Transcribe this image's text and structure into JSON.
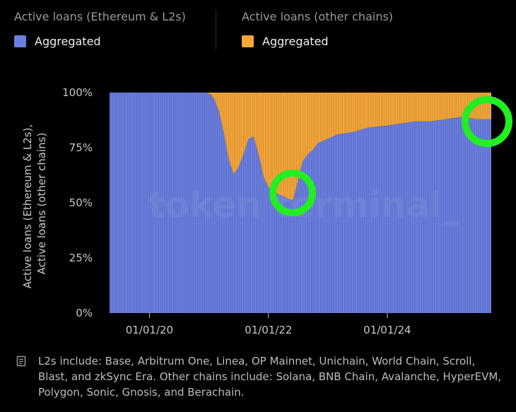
{
  "legend": [
    {
      "title": "Active loans (Ethereum & L2s)",
      "entry": "Aggregated",
      "color": "#6b7fe0"
    },
    {
      "title": "Active loans (other chains)",
      "entry": "Aggregated",
      "color": "#f5a73b"
    }
  ],
  "watermark": "token terminal_",
  "footnote": "L2s include: Base, Arbitrum One, Linea, OP Mainnet, Unichain, World Chain, Scroll, Blast, and zkSync Era. Other chains include: Solana, BNB Chain, Avalanche, HyperEVM, Polygon, Sonic, Gnosis, and Berachain.",
  "annotations": {
    "color": "#22ee22",
    "shape": "circle-icon"
  },
  "chart_data": {
    "type": "area",
    "stacked": true,
    "normalized": true,
    "ylabel": "Active loans (Ethereum & L2s), Active loans (other chains)",
    "ylim": [
      0,
      100
    ],
    "yticks": [
      "0%",
      "25%",
      "50%",
      "75%",
      "100%"
    ],
    "xticks": [
      {
        "label": "01/01/20",
        "date": "2020-01-01"
      },
      {
        "label": "01/01/22",
        "date": "2022-01-01"
      },
      {
        "label": "01/01/24",
        "date": "2024-01-01"
      }
    ],
    "xlim": [
      "2019-05-01",
      "2025-10-01"
    ],
    "grid": false,
    "series": [
      {
        "name": "Active loans (Ethereum & L2s)",
        "color": "#6b7fe0",
        "points": [
          [
            "2019-05-01",
            100
          ],
          [
            "2020-06-01",
            100
          ],
          [
            "2020-12-15",
            100
          ],
          [
            "2021-01-15",
            99
          ],
          [
            "2021-02-01",
            97
          ],
          [
            "2021-03-01",
            92
          ],
          [
            "2021-04-01",
            82
          ],
          [
            "2021-05-01",
            70
          ],
          [
            "2021-06-01",
            63
          ],
          [
            "2021-07-01",
            66
          ],
          [
            "2021-08-01",
            72
          ],
          [
            "2021-09-01",
            79
          ],
          [
            "2021-10-01",
            80
          ],
          [
            "2021-11-01",
            72
          ],
          [
            "2021-12-01",
            62
          ],
          [
            "2022-01-01",
            57
          ],
          [
            "2022-02-01",
            55
          ],
          [
            "2022-03-01",
            54
          ],
          [
            "2022-04-01",
            53
          ],
          [
            "2022-05-01",
            52
          ],
          [
            "2022-06-01",
            51
          ],
          [
            "2022-07-01",
            60
          ],
          [
            "2022-08-01",
            69
          ],
          [
            "2022-09-01",
            72
          ],
          [
            "2022-10-01",
            74
          ],
          [
            "2022-11-01",
            77
          ],
          [
            "2023-01-01",
            79
          ],
          [
            "2023-03-01",
            81
          ],
          [
            "2023-06-01",
            82
          ],
          [
            "2023-09-01",
            84
          ],
          [
            "2024-01-01",
            85
          ],
          [
            "2024-04-01",
            86
          ],
          [
            "2024-07-01",
            87
          ],
          [
            "2024-10-01",
            87
          ],
          [
            "2025-01-01",
            88
          ],
          [
            "2025-04-01",
            89
          ],
          [
            "2025-07-01",
            88
          ],
          [
            "2025-10-01",
            88
          ]
        ]
      },
      {
        "name": "Active loans (other chains)",
        "color": "#f5a73b",
        "fills_to": 100
      }
    ]
  }
}
